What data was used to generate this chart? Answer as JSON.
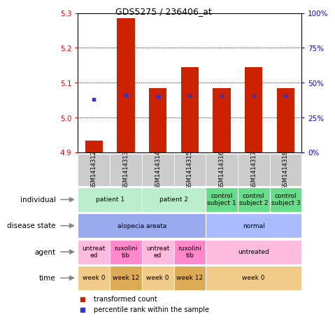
{
  "title": "GDS5275 / 236406_at",
  "samples": [
    "GSM1414312",
    "GSM1414313",
    "GSM1414314",
    "GSM1414315",
    "GSM1414316",
    "GSM1414317",
    "GSM1414318"
  ],
  "transformed_count": [
    4.935,
    5.285,
    5.085,
    5.145,
    5.085,
    5.145,
    5.085
  ],
  "percentile_values": [
    5.052,
    5.065,
    5.06,
    5.062,
    5.062,
    5.062,
    5.062
  ],
  "ylim_left": [
    4.9,
    5.3
  ],
  "ylim_right": [
    0,
    100
  ],
  "yticks_left": [
    4.9,
    5.0,
    5.1,
    5.2,
    5.3
  ],
  "yticks_right": [
    0,
    25,
    50,
    75,
    100
  ],
  "bar_color": "#cc2200",
  "dot_color": "#3333cc",
  "bar_width": 0.55,
  "annotation_rows": [
    {
      "label": "individual",
      "cells": [
        {
          "text": "patient 1",
          "span": 2,
          "color": "#bbeecc"
        },
        {
          "text": "patient 2",
          "span": 2,
          "color": "#bbeecc"
        },
        {
          "text": "control\nsubject 1",
          "span": 1,
          "color": "#66dd88"
        },
        {
          "text": "control\nsubject 2",
          "span": 1,
          "color": "#66dd88"
        },
        {
          "text": "control\nsubject 3",
          "span": 1,
          "color": "#66dd88"
        }
      ]
    },
    {
      "label": "disease state",
      "cells": [
        {
          "text": "alopecia areata",
          "span": 4,
          "color": "#99aaee"
        },
        {
          "text": "normal",
          "span": 3,
          "color": "#aabbff"
        }
      ]
    },
    {
      "label": "agent",
      "cells": [
        {
          "text": "untreat\ned",
          "span": 1,
          "color": "#ffbbdd"
        },
        {
          "text": "ruxolini\ntib",
          "span": 1,
          "color": "#ff88cc"
        },
        {
          "text": "untreat\ned",
          "span": 1,
          "color": "#ffbbdd"
        },
        {
          "text": "ruxolini\ntib",
          "span": 1,
          "color": "#ff88cc"
        },
        {
          "text": "untreated",
          "span": 3,
          "color": "#ffbbdd"
        }
      ]
    },
    {
      "label": "time",
      "cells": [
        {
          "text": "week 0",
          "span": 1,
          "color": "#f0cc88"
        },
        {
          "text": "week 12",
          "span": 1,
          "color": "#ddaa55"
        },
        {
          "text": "week 0",
          "span": 1,
          "color": "#f0cc88"
        },
        {
          "text": "week 12",
          "span": 1,
          "color": "#ddaa55"
        },
        {
          "text": "week 0",
          "span": 3,
          "color": "#f0cc88"
        }
      ]
    }
  ],
  "legend_items": [
    {
      "label": "transformed count",
      "color": "#cc2200"
    },
    {
      "label": "percentile rank within the sample",
      "color": "#3333cc"
    }
  ],
  "sample_cell_color": "#cccccc",
  "chart_box_color": "black"
}
